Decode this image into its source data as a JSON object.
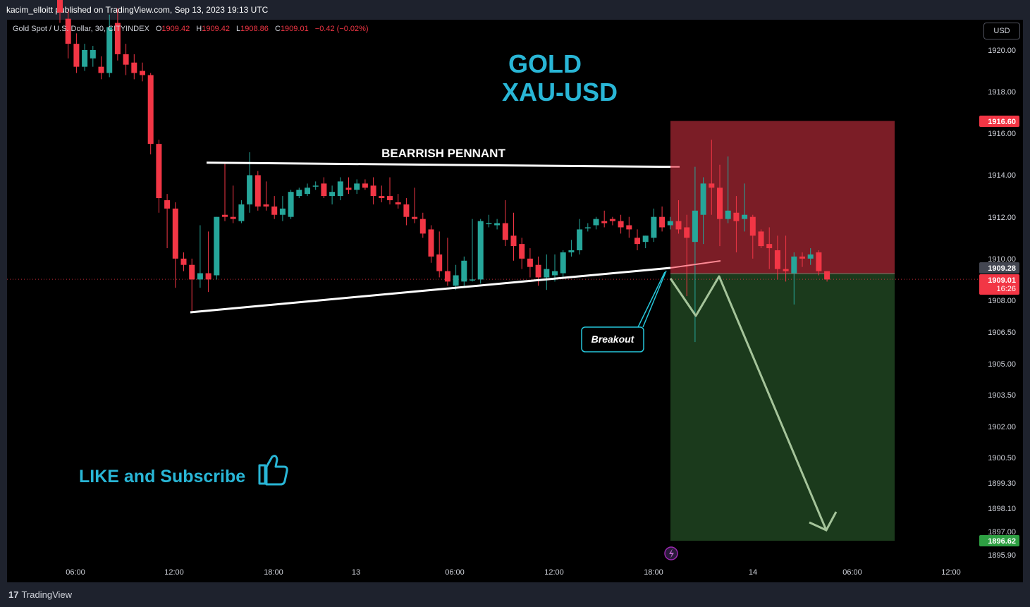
{
  "header": {
    "publisher": "kacim_elloitt published on TradingView.com, Sep 13, 2023 19:13 UTC"
  },
  "legend": {
    "symbol": "Gold Spot / U.S. Dollar, 30, CITYINDEX",
    "open_label": "O",
    "open": "1909.42",
    "high_label": "H",
    "high": "1909.42",
    "low_label": "L",
    "low": "1908.86",
    "close_label": "C",
    "close": "1909.01",
    "change": "−0.42 (−0.02%)"
  },
  "currency_button": "USD",
  "footer": {
    "brand": "TradingView",
    "brand_mark": "17"
  },
  "annotations": {
    "title_line1": "GOLD",
    "title_line2": "XAU-USD",
    "pattern_label": "BEARRISH PENNANT",
    "breakout_label": "Breakout",
    "cta": "LIKE and Subscribe",
    "cta_icon": "thumbs-up-icon",
    "flash_icon": "lightning-icon"
  },
  "colors": {
    "up": "#26a69a",
    "down": "#f23645",
    "title": "#29b6d6",
    "stop_zone": "#7b1d26",
    "target_zone": "#1b3a1c",
    "arrow": "#a5c49a"
  },
  "chart_data": {
    "type": "candlestick",
    "title": "Gold Spot / U.S. Dollar, 30, CITYINDEX",
    "y_axis": {
      "ticks": [
        "1920.00",
        "1918.00",
        "1916.00",
        "1914.00",
        "1912.00",
        "1910.00",
        "1908.00",
        "1906.50",
        "1905.00",
        "1903.50",
        "1902.00",
        "1900.50",
        "1899.30",
        "1898.10",
        "1897.00",
        "1895.90"
      ],
      "range": [
        1895.6,
        1921.2
      ]
    },
    "x_axis": {
      "ticks": [
        "06:00",
        "12:00",
        "18:00",
        "13",
        "06:00",
        "12:00",
        "18:00",
        "14",
        "06:00",
        "12:00"
      ]
    },
    "price_labels": {
      "stop": "1916.60",
      "entry": "1909.28",
      "current": "1909.01",
      "countdown": "16:26",
      "target": "1896.62"
    },
    "candles": [
      {
        "o": 1922.4,
        "h": 1922.8,
        "c": 1921.8,
        "l": 1921.3
      },
      {
        "o": 1921.5,
        "h": 1921.9,
        "c": 1920.3,
        "l": 1919.6
      },
      {
        "o": 1920.3,
        "h": 1920.8,
        "c": 1919.2,
        "l": 1918.9
      },
      {
        "o": 1919.2,
        "h": 1920.3,
        "c": 1920.0,
        "l": 1919.0
      },
      {
        "o": 1919.6,
        "h": 1920.2,
        "c": 1920.0,
        "l": 1919.2
      },
      {
        "o": 1919.2,
        "h": 1919.7,
        "c": 1918.9,
        "l": 1918.6
      },
      {
        "o": 1918.9,
        "h": 1921.7,
        "c": 1921.1,
        "l": 1918.7
      },
      {
        "o": 1921.3,
        "h": 1922.0,
        "c": 1919.8,
        "l": 1919.5
      },
      {
        "o": 1919.8,
        "h": 1920.3,
        "c": 1919.3,
        "l": 1918.8
      },
      {
        "o": 1919.4,
        "h": 1919.8,
        "c": 1918.9,
        "l": 1918.6
      },
      {
        "o": 1919.0,
        "h": 1919.4,
        "c": 1918.8,
        "l": 1918.5
      },
      {
        "o": 1918.8,
        "h": 1918.9,
        "c": 1915.5,
        "l": 1915.0
      },
      {
        "o": 1915.5,
        "h": 1915.7,
        "c": 1912.9,
        "l": 1912.2
      },
      {
        "o": 1912.8,
        "h": 1913.1,
        "c": 1912.4,
        "l": 1910.5
      },
      {
        "o": 1912.4,
        "h": 1912.7,
        "c": 1910.0,
        "l": 1908.6
      },
      {
        "o": 1910.0,
        "h": 1910.3,
        "c": 1909.7,
        "l": 1909.4
      },
      {
        "o": 1909.7,
        "h": 1910.0,
        "c": 1909.0,
        "l": 1907.5
      },
      {
        "o": 1909.0,
        "h": 1911.6,
        "c": 1909.3,
        "l": 1908.6
      },
      {
        "o": 1909.3,
        "h": 1911.3,
        "c": 1909.0,
        "l": 1908.4
      },
      {
        "o": 1909.2,
        "h": 1912.0,
        "c": 1912.0,
        "l": 1909.0
      },
      {
        "o": 1912.1,
        "h": 1914.6,
        "c": 1912.0,
        "l": 1911.8
      },
      {
        "o": 1912.0,
        "h": 1913.5,
        "c": 1911.9,
        "l": 1911.7
      },
      {
        "o": 1911.8,
        "h": 1912.8,
        "c": 1912.6,
        "l": 1911.7
      },
      {
        "o": 1912.6,
        "h": 1915.1,
        "c": 1914.0,
        "l": 1912.2
      },
      {
        "o": 1914.0,
        "h": 1914.2,
        "c": 1912.5,
        "l": 1912.3
      },
      {
        "o": 1912.6,
        "h": 1913.7,
        "c": 1912.5,
        "l": 1912.3
      },
      {
        "o": 1912.5,
        "h": 1913.0,
        "c": 1912.1,
        "l": 1911.9
      },
      {
        "o": 1912.1,
        "h": 1913.0,
        "c": 1912.4,
        "l": 1911.8
      },
      {
        "o": 1912.0,
        "h": 1913.3,
        "c": 1913.2,
        "l": 1911.9
      },
      {
        "o": 1913.0,
        "h": 1913.4,
        "c": 1913.3,
        "l": 1912.9
      },
      {
        "o": 1913.1,
        "h": 1913.6,
        "c": 1913.4,
        "l": 1913.0
      },
      {
        "o": 1913.5,
        "h": 1913.7,
        "c": 1913.5,
        "l": 1913.3
      },
      {
        "o": 1913.6,
        "h": 1913.9,
        "c": 1913.0,
        "l": 1912.9
      },
      {
        "o": 1913.0,
        "h": 1913.5,
        "c": 1913.2,
        "l": 1912.6
      },
      {
        "o": 1913.0,
        "h": 1913.9,
        "c": 1913.7,
        "l": 1912.8
      },
      {
        "o": 1913.4,
        "h": 1913.9,
        "c": 1913.3,
        "l": 1913.1
      },
      {
        "o": 1913.3,
        "h": 1913.8,
        "c": 1913.6,
        "l": 1913.1
      },
      {
        "o": 1913.6,
        "h": 1913.8,
        "c": 1913.4,
        "l": 1913.3
      },
      {
        "o": 1913.5,
        "h": 1913.9,
        "c": 1913.0,
        "l": 1912.6
      },
      {
        "o": 1913.0,
        "h": 1913.5,
        "c": 1912.9,
        "l": 1912.7
      },
      {
        "o": 1913.0,
        "h": 1913.9,
        "c": 1912.8,
        "l": 1912.6
      },
      {
        "o": 1912.7,
        "h": 1913.1,
        "c": 1912.6,
        "l": 1912.4
      },
      {
        "o": 1912.6,
        "h": 1912.9,
        "c": 1912.0,
        "l": 1911.6
      },
      {
        "o": 1912.0,
        "h": 1913.4,
        "c": 1911.9,
        "l": 1911.7
      },
      {
        "o": 1911.9,
        "h": 1912.2,
        "c": 1911.2,
        "l": 1911.0
      },
      {
        "o": 1911.4,
        "h": 1911.6,
        "c": 1910.1,
        "l": 1909.8
      },
      {
        "o": 1910.2,
        "h": 1911.3,
        "c": 1909.4,
        "l": 1909.1
      },
      {
        "o": 1909.4,
        "h": 1911.0,
        "c": 1908.9,
        "l": 1908.7
      },
      {
        "o": 1908.7,
        "h": 1909.7,
        "c": 1909.2,
        "l": 1908.5
      },
      {
        "o": 1908.9,
        "h": 1910.1,
        "c": 1909.9,
        "l": 1908.7
      },
      {
        "o": 1909.0,
        "h": 1911.9,
        "c": 1909.0,
        "l": 1908.9
      },
      {
        "o": 1909.0,
        "h": 1911.9,
        "c": 1911.8,
        "l": 1908.8
      },
      {
        "o": 1911.7,
        "h": 1912.1,
        "c": 1911.7,
        "l": 1911.5
      },
      {
        "o": 1911.6,
        "h": 1911.9,
        "c": 1911.7,
        "l": 1911.4
      },
      {
        "o": 1911.7,
        "h": 1912.8,
        "c": 1910.9,
        "l": 1910.6
      },
      {
        "o": 1911.1,
        "h": 1912.2,
        "c": 1910.6,
        "l": 1909.9
      },
      {
        "o": 1910.7,
        "h": 1911.0,
        "c": 1910.0,
        "l": 1909.5
      },
      {
        "o": 1910.0,
        "h": 1910.5,
        "c": 1909.6,
        "l": 1909.1
      },
      {
        "o": 1909.7,
        "h": 1910.1,
        "c": 1909.1,
        "l": 1908.7
      },
      {
        "o": 1909.1,
        "h": 1910.2,
        "c": 1909.5,
        "l": 1908.5
      },
      {
        "o": 1909.2,
        "h": 1910.2,
        "c": 1909.4,
        "l": 1908.9
      },
      {
        "o": 1909.3,
        "h": 1910.4,
        "c": 1910.3,
        "l": 1909.1
      },
      {
        "o": 1910.3,
        "h": 1910.9,
        "c": 1910.4,
        "l": 1910.1
      },
      {
        "o": 1910.4,
        "h": 1911.9,
        "c": 1911.4,
        "l": 1910.2
      },
      {
        "o": 1911.5,
        "h": 1911.7,
        "c": 1911.5,
        "l": 1911.3
      },
      {
        "o": 1911.6,
        "h": 1912.0,
        "c": 1911.9,
        "l": 1911.4
      },
      {
        "o": 1911.8,
        "h": 1912.3,
        "c": 1911.7,
        "l": 1911.5
      },
      {
        "o": 1911.9,
        "h": 1912.0,
        "c": 1911.8,
        "l": 1911.6
      },
      {
        "o": 1911.8,
        "h": 1912.1,
        "c": 1911.5,
        "l": 1911.2
      },
      {
        "o": 1911.6,
        "h": 1912.0,
        "c": 1911.4,
        "l": 1911.0
      },
      {
        "o": 1911.0,
        "h": 1911.4,
        "c": 1910.7,
        "l": 1910.4
      },
      {
        "o": 1910.8,
        "h": 1911.1,
        "c": 1911.1,
        "l": 1910.5
      },
      {
        "o": 1911.0,
        "h": 1912.4,
        "c": 1912.0,
        "l": 1910.8
      },
      {
        "o": 1912.0,
        "h": 1912.5,
        "c": 1911.5,
        "l": 1911.3
      },
      {
        "o": 1911.6,
        "h": 1912.0,
        "c": 1911.8,
        "l": 1911.4
      },
      {
        "o": 1911.8,
        "h": 1912.8,
        "c": 1911.4,
        "l": 1911.2
      },
      {
        "o": 1911.5,
        "h": 1912.1,
        "c": 1911.0,
        "l": 1908.2
      },
      {
        "o": 1910.8,
        "h": 1914.4,
        "c": 1912.3,
        "l": 1906.0
      },
      {
        "o": 1912.1,
        "h": 1913.9,
        "c": 1913.6,
        "l": 1910.7
      },
      {
        "o": 1913.6,
        "h": 1915.7,
        "c": 1913.4,
        "l": 1912.1
      },
      {
        "o": 1913.4,
        "h": 1914.5,
        "c": 1911.9,
        "l": 1910.6
      },
      {
        "o": 1911.9,
        "h": 1914.9,
        "c": 1912.3,
        "l": 1911.7
      },
      {
        "o": 1912.2,
        "h": 1913.0,
        "c": 1911.8,
        "l": 1910.3
      },
      {
        "o": 1911.9,
        "h": 1913.6,
        "c": 1912.1,
        "l": 1911.3
      },
      {
        "o": 1912.0,
        "h": 1912.1,
        "c": 1911.1,
        "l": 1910.0
      },
      {
        "o": 1911.3,
        "h": 1911.4,
        "c": 1910.6,
        "l": 1910.5
      },
      {
        "o": 1910.7,
        "h": 1911.5,
        "c": 1910.5,
        "l": 1909.5
      },
      {
        "o": 1910.4,
        "h": 1911.1,
        "c": 1909.5,
        "l": 1909.0
      },
      {
        "o": 1909.5,
        "h": 1911.1,
        "c": 1909.4,
        "l": 1908.9
      },
      {
        "o": 1909.3,
        "h": 1910.3,
        "c": 1910.1,
        "l": 1907.8
      },
      {
        "o": 1910.1,
        "h": 1910.3,
        "c": 1910.0,
        "l": 1909.6
      },
      {
        "o": 1910.0,
        "h": 1910.5,
        "c": 1910.2,
        "l": 1909.7
      },
      {
        "o": 1910.3,
        "h": 1910.4,
        "c": 1909.4,
        "l": 1909.2
      },
      {
        "o": 1909.4,
        "h": 1909.4,
        "c": 1909.0,
        "l": 1908.9
      }
    ],
    "lines": {
      "pennant_top": [
        [
          14,
          1914.6
        ],
        [
          71,
          1914.4
        ]
      ],
      "pennant_bottom": [
        [
          14,
          1907.5
        ],
        [
          71,
          1909.8
        ]
      ]
    },
    "zones": {
      "stop_top": 1916.6,
      "entry": 1909.28,
      "target": 1896.62
    },
    "projection": [
      [
        0,
        1909.0
      ],
      [
        3,
        1907.4
      ],
      [
        5.5,
        1909.1
      ],
      [
        16,
        1897.1
      ]
    ]
  }
}
